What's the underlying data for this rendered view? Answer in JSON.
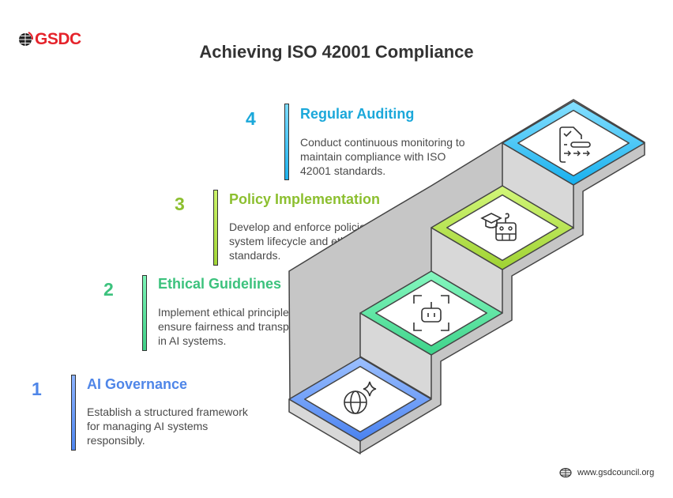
{
  "logo": {
    "text": "GSDC"
  },
  "title": "Achieving ISO 42001 Compliance",
  "steps": [
    {
      "number": "1",
      "title": "AI Governance",
      "lines": [
        "Establish a structured framework",
        "for managing AI systems",
        "responsibly."
      ],
      "color": "#4f86e8",
      "icon": "globe-sparkle-icon"
    },
    {
      "number": "2",
      "title": "Ethical Guidelines",
      "lines": [
        "Implement ethical principles to",
        "ensure fairness and transparency",
        "in AI systems."
      ],
      "color": "#3cc27d",
      "icon": "robot-scan-icon"
    },
    {
      "number": "3",
      "title": "Policy Implementation",
      "lines": [
        "Develop and enforce policies for AI",
        "system lifecycle and ethical",
        "standards."
      ],
      "color": "#8cbf2f",
      "icon": "graduation-robot-icon"
    },
    {
      "number": "4",
      "title": "Regular Auditing",
      "lines": [
        "Conduct continuous monitoring to",
        "maintain compliance with ISO",
        "42001 standards."
      ],
      "color": "#1ba8da",
      "icon": "document-checklist-icon"
    }
  ],
  "footer": {
    "url": "www.gsdcouncil.org",
    "icon": "globe-icon"
  }
}
